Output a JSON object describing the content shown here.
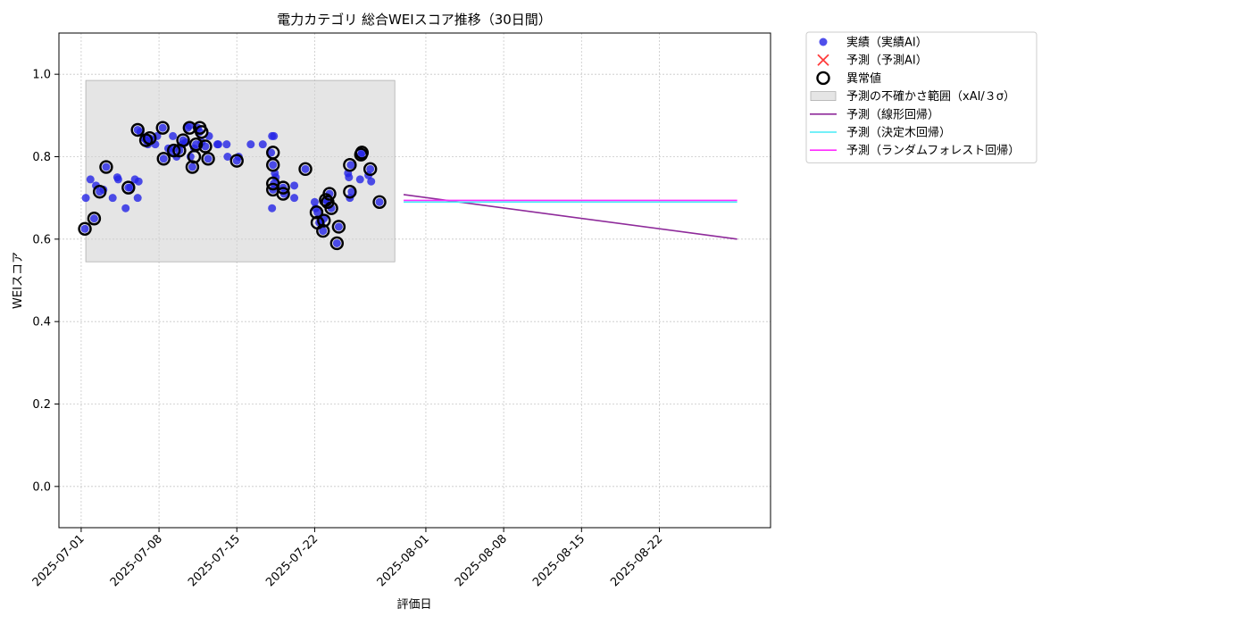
{
  "chart_data": {
    "type": "scatter",
    "title": "電力カテゴリ 総合WEIスコア推移（30日間）",
    "xlabel": "評価日",
    "ylabel": "WEIスコア",
    "xlim": [
      "2025-06-29",
      "2025-09-01"
    ],
    "ylim": [
      -0.1,
      1.1
    ],
    "x_ticks": [
      "2025-07-01",
      "2025-07-08",
      "2025-07-15",
      "2025-07-22",
      "2025-08-01",
      "2025-08-08",
      "2025-08-15",
      "2025-08-22"
    ],
    "y_ticks": [
      0.0,
      0.2,
      0.4,
      0.6,
      0.8,
      1.0
    ],
    "grid": true,
    "legend": "outside-top-right",
    "colors": {
      "actual": "#2323e6",
      "predicted": "#ff3b3b",
      "anomaly": "#000000",
      "uncertainty": "#cfcfcf",
      "linear": "#8e2a9a",
      "tree": "#46ecf5",
      "forest": "#ff2bff"
    },
    "legend_entries": [
      {
        "key": "actual",
        "label": "実績（実績AI）",
        "marker": "dot"
      },
      {
        "key": "predicted",
        "label": "予測（予測AI）",
        "marker": "x"
      },
      {
        "key": "anomaly",
        "label": "異常値",
        "marker": "ring"
      },
      {
        "key": "uncertainty",
        "label": "予測の不確かさ範囲（xAI/３σ）",
        "marker": "patch"
      },
      {
        "key": "linear",
        "label": "予測（線形回帰）",
        "marker": "line"
      },
      {
        "key": "tree",
        "label": "予測（決定木回帰）",
        "marker": "line"
      },
      {
        "key": "forest",
        "label": "予測（ランダムフォレスト回帰）",
        "marker": "line"
      }
    ],
    "uncertainty_band": {
      "x": [
        "2025-07-01T10:00",
        "2025-07-29T05:00"
      ],
      "y": [
        0.545,
        0.985
      ]
    },
    "actual": [
      [
        "2025-07-01T08:00",
        0.625
      ],
      [
        "2025-07-01T10:00",
        0.7
      ],
      [
        "2025-07-01T20:00",
        0.745
      ],
      [
        "2025-07-02T04:00",
        0.65
      ],
      [
        "2025-07-02T08:00",
        0.73
      ],
      [
        "2025-07-02T16:00",
        0.715
      ],
      [
        "2025-07-03T00:00",
        0.72
      ],
      [
        "2025-07-03T06:00",
        0.775
      ],
      [
        "2025-07-03T20:00",
        0.7
      ],
      [
        "2025-07-04T06:00",
        0.75
      ],
      [
        "2025-07-04T08:00",
        0.745
      ],
      [
        "2025-07-05T00:00",
        0.675
      ],
      [
        "2025-07-05T06:00",
        0.725
      ],
      [
        "2025-07-05T10:00",
        0.725
      ],
      [
        "2025-07-05T20:00",
        0.745
      ],
      [
        "2025-07-06T02:00",
        0.7
      ],
      [
        "2025-07-06T04:00",
        0.74
      ],
      [
        "2025-07-06T02:00",
        0.865
      ],
      [
        "2025-07-06T08:00",
        0.86
      ],
      [
        "2025-07-06T16:00",
        0.845
      ],
      [
        "2025-07-06T20:00",
        0.84
      ],
      [
        "2025-07-07T00:00",
        0.83
      ],
      [
        "2025-07-07T04:00",
        0.845
      ],
      [
        "2025-07-07T08:00",
        0.84
      ],
      [
        "2025-07-07T16:00",
        0.83
      ],
      [
        "2025-07-07T20:00",
        0.85
      ],
      [
        "2025-07-08T08:00",
        0.87
      ],
      [
        "2025-07-08T10:00",
        0.795
      ],
      [
        "2025-07-08T20:00",
        0.82
      ],
      [
        "2025-07-09T02:00",
        0.81
      ],
      [
        "2025-07-09T06:00",
        0.85
      ],
      [
        "2025-07-09T08:00",
        0.82
      ],
      [
        "2025-07-09T14:00",
        0.8
      ],
      [
        "2025-07-09T20:00",
        0.815
      ],
      [
        "2025-07-10T02:00",
        0.83
      ],
      [
        "2025-07-10T04:00",
        0.84
      ],
      [
        "2025-07-10T10:00",
        0.835
      ],
      [
        "2025-07-10T14:00",
        0.87
      ],
      [
        "2025-07-10T18:00",
        0.875
      ],
      [
        "2025-07-10T20:00",
        0.8
      ],
      [
        "2025-07-11T00:00",
        0.775
      ],
      [
        "2025-07-11T04:00",
        0.82
      ],
      [
        "2025-07-11T08:00",
        0.83
      ],
      [
        "2025-07-11T12:00",
        0.87
      ],
      [
        "2025-07-11T16:00",
        0.86
      ],
      [
        "2025-07-11T20:00",
        0.835
      ],
      [
        "2025-07-12T04:00",
        0.825
      ],
      [
        "2025-07-12T10:00",
        0.795
      ],
      [
        "2025-07-12T12:00",
        0.85
      ],
      [
        "2025-07-13T06:00",
        0.83
      ],
      [
        "2025-07-13T08:00",
        0.83
      ],
      [
        "2025-07-14T02:00",
        0.83
      ],
      [
        "2025-07-14T04:00",
        0.8
      ],
      [
        "2025-07-15T00:00",
        0.79
      ],
      [
        "2025-07-15T04:00",
        0.8
      ],
      [
        "2025-07-16T06:00",
        0.83
      ],
      [
        "2025-07-17T08:00",
        0.83
      ],
      [
        "2025-07-18T02:00",
        0.81
      ],
      [
        "2025-07-18T04:00",
        0.85
      ],
      [
        "2025-07-18T08:00",
        0.85
      ],
      [
        "2025-07-18T06:00",
        0.78
      ],
      [
        "2025-07-18T10:00",
        0.76
      ],
      [
        "2025-07-18T12:00",
        0.75
      ],
      [
        "2025-07-18T08:00",
        0.735
      ],
      [
        "2025-07-18T06:00",
        0.72
      ],
      [
        "2025-07-18T04:00",
        0.675
      ],
      [
        "2025-07-19T04:00",
        0.725
      ],
      [
        "2025-07-19T06:00",
        0.71
      ],
      [
        "2025-07-20T04:00",
        0.73
      ],
      [
        "2025-07-20T04:00",
        0.7
      ],
      [
        "2025-07-21T04:00",
        0.77
      ],
      [
        "2025-07-22T00:00",
        0.69
      ],
      [
        "2025-07-22T02:00",
        0.675
      ],
      [
        "2025-07-22T06:00",
        0.665
      ],
      [
        "2025-07-22T10:00",
        0.64
      ],
      [
        "2025-07-22T14:00",
        0.64
      ],
      [
        "2025-07-22T18:00",
        0.62
      ],
      [
        "2025-07-22T20:00",
        0.65
      ],
      [
        "2025-07-23T00:00",
        0.695
      ],
      [
        "2025-07-23T04:00",
        0.69
      ],
      [
        "2025-07-23T08:00",
        0.71
      ],
      [
        "2025-07-23T12:00",
        0.675
      ],
      [
        "2025-07-24T00:00",
        0.59
      ],
      [
        "2025-07-24T04:00",
        0.63
      ],
      [
        "2025-07-25T00:00",
        0.76
      ],
      [
        "2025-07-25T02:00",
        0.75
      ],
      [
        "2025-07-25T04:00",
        0.7
      ],
      [
        "2025-07-25T06:00",
        0.78
      ],
      [
        "2025-07-25T08:00",
        0.715
      ],
      [
        "2025-07-26T02:00",
        0.745
      ],
      [
        "2025-07-26T04:00",
        0.805
      ],
      [
        "2025-07-26T06:00",
        0.81
      ],
      [
        "2025-07-26T20:00",
        0.755
      ],
      [
        "2025-07-27T00:00",
        0.77
      ],
      [
        "2025-07-27T02:00",
        0.74
      ],
      [
        "2025-07-27T20:00",
        0.69
      ]
    ],
    "anomalies": [
      [
        "2025-07-01T08:00",
        0.625
      ],
      [
        "2025-07-02T04:00",
        0.65
      ],
      [
        "2025-07-02T16:00",
        0.715
      ],
      [
        "2025-07-03T06:00",
        0.775
      ],
      [
        "2025-07-05T06:00",
        0.725
      ],
      [
        "2025-07-06T02:00",
        0.865
      ],
      [
        "2025-07-06T20:00",
        0.84
      ],
      [
        "2025-07-07T04:00",
        0.845
      ],
      [
        "2025-07-08T08:00",
        0.87
      ],
      [
        "2025-07-08T10:00",
        0.795
      ],
      [
        "2025-07-09T08:00",
        0.815
      ],
      [
        "2025-07-10T04:00",
        0.84
      ],
      [
        "2025-07-09T20:00",
        0.815
      ],
      [
        "2025-07-10T18:00",
        0.87
      ],
      [
        "2025-07-11T00:00",
        0.775
      ],
      [
        "2025-07-11T04:00",
        0.8
      ],
      [
        "2025-07-11T08:00",
        0.83
      ],
      [
        "2025-07-11T16:00",
        0.87
      ],
      [
        "2025-07-11T20:00",
        0.86
      ],
      [
        "2025-07-12T04:00",
        0.825
      ],
      [
        "2025-07-12T10:00",
        0.795
      ],
      [
        "2025-07-15T00:00",
        0.79
      ],
      [
        "2025-07-18T06:00",
        0.81
      ],
      [
        "2025-07-18T06:00",
        0.78
      ],
      [
        "2025-07-18T06:00",
        0.735
      ],
      [
        "2025-07-18T06:00",
        0.72
      ],
      [
        "2025-07-19T04:00",
        0.725
      ],
      [
        "2025-07-19T04:00",
        0.71
      ],
      [
        "2025-07-21T04:00",
        0.77
      ],
      [
        "2025-07-22T04:00",
        0.665
      ],
      [
        "2025-07-22T06:00",
        0.64
      ],
      [
        "2025-07-22T18:00",
        0.62
      ],
      [
        "2025-07-22T20:00",
        0.645
      ],
      [
        "2025-07-23T00:00",
        0.695
      ],
      [
        "2025-07-23T04:00",
        0.69
      ],
      [
        "2025-07-23T08:00",
        0.71
      ],
      [
        "2025-07-23T12:00",
        0.675
      ],
      [
        "2025-07-24T00:00",
        0.59
      ],
      [
        "2025-07-24T04:00",
        0.63
      ],
      [
        "2025-07-25T04:00",
        0.78
      ],
      [
        "2025-07-25T04:00",
        0.715
      ],
      [
        "2025-07-26T04:00",
        0.805
      ],
      [
        "2025-07-26T06:00",
        0.81
      ],
      [
        "2025-07-27T00:00",
        0.77
      ],
      [
        "2025-07-27T20:00",
        0.69
      ]
    ],
    "forecast_lines": [
      {
        "key": "linear",
        "x": [
          "2025-07-30",
          "2025-08-29"
        ],
        "y": [
          0.708,
          0.6
        ]
      },
      {
        "key": "tree",
        "x": [
          "2025-07-30",
          "2025-08-29"
        ],
        "y": [
          0.69,
          0.69
        ]
      },
      {
        "key": "forest",
        "x": [
          "2025-07-30",
          "2025-08-29"
        ],
        "y": [
          0.694,
          0.694
        ]
      }
    ]
  }
}
